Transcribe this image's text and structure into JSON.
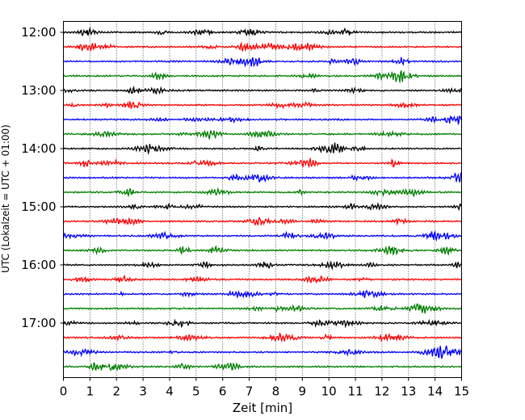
{
  "chart_data": {
    "type": "line",
    "title": "",
    "xlabel": "Zeit  [min]",
    "ylabel": "UTC (Lokalzeit = UTC + 01:00)",
    "x_ticks": [
      0,
      1,
      2,
      3,
      4,
      5,
      6,
      7,
      8,
      9,
      10,
      11,
      12,
      13,
      14,
      15
    ],
    "xlim": [
      0,
      15
    ],
    "y_ticks": [
      "12:00",
      "13:00",
      "14:00",
      "15:00",
      "16:00",
      "17:00"
    ],
    "trace_start_times": [
      "12:00",
      "12:15",
      "12:30",
      "12:45",
      "13:00",
      "13:15",
      "13:30",
      "13:45",
      "14:00",
      "14:15",
      "14:30",
      "14:45",
      "15:00",
      "15:15",
      "15:30",
      "15:45",
      "16:00",
      "16:15",
      "16:30",
      "16:45",
      "17:00",
      "17:15",
      "17:30",
      "17:45"
    ],
    "trace_colors": [
      "#000000",
      "#ff0000",
      "#0000ff",
      "#007f00"
    ],
    "grid": "vertical dotted lines at each minute"
  }
}
